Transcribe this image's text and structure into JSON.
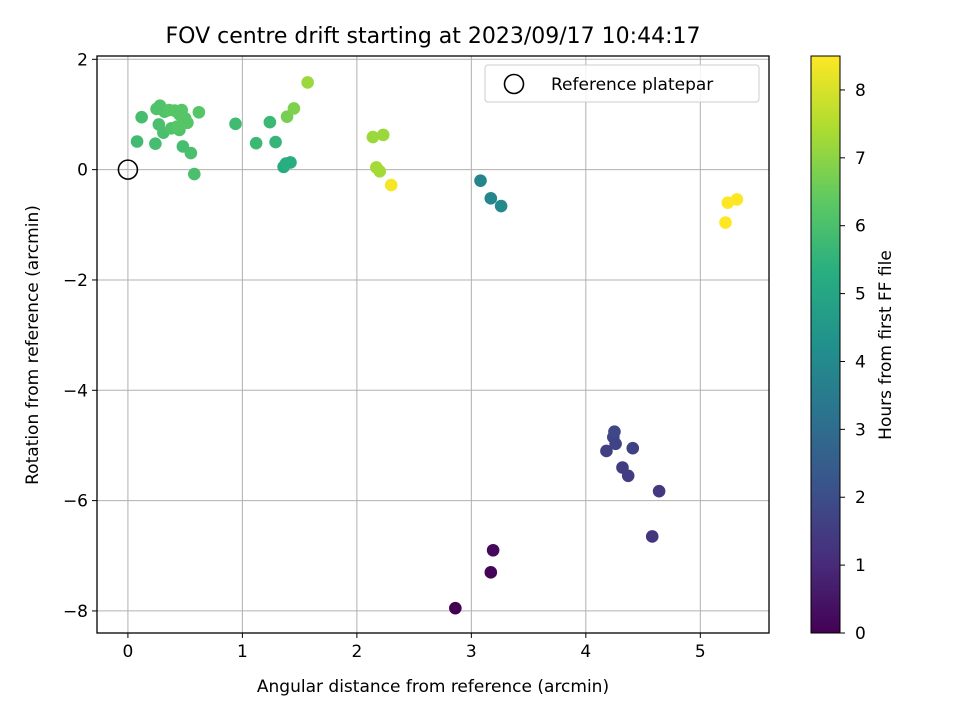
{
  "chart_data": {
    "type": "scatter",
    "title": "FOV centre drift starting at 2023/09/17 10:44:17",
    "xlabel": "Angular distance from reference (arcmin)",
    "ylabel": "Rotation from reference (arcmin)",
    "xlim": [
      -0.27,
      5.6
    ],
    "ylim": [
      -8.4,
      2.06
    ],
    "xticks": [
      0,
      1,
      2,
      3,
      4,
      5
    ],
    "xtick_labels": [
      "0",
      "1",
      "2",
      "3",
      "4",
      "5"
    ],
    "yticks": [
      2,
      0,
      -2,
      -4,
      -6,
      -8
    ],
    "ytick_labels": [
      "2",
      "0",
      "−2",
      "−4",
      "−6",
      "−8"
    ],
    "grid": true,
    "colormap": "viridis",
    "colorbar": {
      "label": "Hours from first FF file",
      "range": [
        0,
        8.5
      ],
      "ticks": [
        0,
        1,
        2,
        3,
        4,
        5,
        6,
        7,
        8
      ],
      "tick_labels": [
        "0",
        "1",
        "2",
        "3",
        "4",
        "5",
        "6",
        "7",
        "8"
      ]
    },
    "legend": {
      "label": "Reference platepar",
      "position": "top-right"
    },
    "reference_point": {
      "x": 0,
      "y": 0
    },
    "points": [
      {
        "x": 2.86,
        "y": -7.95,
        "hours": 0.0
      },
      {
        "x": 3.17,
        "y": -7.3,
        "hours": 0.1
      },
      {
        "x": 3.19,
        "y": -6.9,
        "hours": 0.2
      },
      {
        "x": 4.58,
        "y": -6.65,
        "hours": 1.3
      },
      {
        "x": 4.64,
        "y": -5.83,
        "hours": 1.4
      },
      {
        "x": 4.37,
        "y": -5.55,
        "hours": 1.5
      },
      {
        "x": 4.32,
        "y": -5.4,
        "hours": 1.5
      },
      {
        "x": 4.18,
        "y": -5.1,
        "hours": 1.6
      },
      {
        "x": 4.41,
        "y": -5.05,
        "hours": 1.6
      },
      {
        "x": 4.26,
        "y": -4.97,
        "hours": 1.7
      },
      {
        "x": 4.24,
        "y": -4.85,
        "hours": 1.7
      },
      {
        "x": 4.25,
        "y": -4.75,
        "hours": 1.8
      },
      {
        "x": 3.08,
        "y": -0.2,
        "hours": 3.8
      },
      {
        "x": 3.17,
        "y": -0.52,
        "hours": 3.9
      },
      {
        "x": 3.26,
        "y": -0.66,
        "hours": 4.0
      },
      {
        "x": 1.36,
        "y": 0.05,
        "hours": 5.2
      },
      {
        "x": 1.38,
        "y": 0.11,
        "hours": 5.3
      },
      {
        "x": 1.42,
        "y": 0.13,
        "hours": 5.3
      },
      {
        "x": 1.29,
        "y": 0.5,
        "hours": 5.6
      },
      {
        "x": 1.12,
        "y": 0.48,
        "hours": 5.7
      },
      {
        "x": 1.24,
        "y": 0.86,
        "hours": 5.7
      },
      {
        "x": 0.94,
        "y": 0.83,
        "hours": 5.8
      },
      {
        "x": 0.08,
        "y": 0.51,
        "hours": 5.8
      },
      {
        "x": 0.24,
        "y": 0.47,
        "hours": 5.9
      },
      {
        "x": 0.12,
        "y": 0.95,
        "hours": 5.9
      },
      {
        "x": 0.48,
        "y": 0.42,
        "hours": 5.9
      },
      {
        "x": 0.55,
        "y": 0.3,
        "hours": 6.0
      },
      {
        "x": 0.58,
        "y": -0.08,
        "hours": 6.0
      },
      {
        "x": 0.27,
        "y": 0.82,
        "hours": 6.0
      },
      {
        "x": 0.31,
        "y": 0.67,
        "hours": 6.0
      },
      {
        "x": 0.38,
        "y": 0.75,
        "hours": 6.1
      },
      {
        "x": 0.45,
        "y": 0.72,
        "hours": 6.1
      },
      {
        "x": 0.25,
        "y": 1.1,
        "hours": 6.1
      },
      {
        "x": 0.28,
        "y": 1.16,
        "hours": 6.1
      },
      {
        "x": 0.32,
        "y": 1.05,
        "hours": 6.1
      },
      {
        "x": 0.36,
        "y": 1.08,
        "hours": 6.2
      },
      {
        "x": 0.41,
        "y": 1.07,
        "hours": 6.2
      },
      {
        "x": 0.45,
        "y": 1.0,
        "hours": 6.2
      },
      {
        "x": 0.47,
        "y": 1.08,
        "hours": 6.2
      },
      {
        "x": 0.5,
        "y": 0.93,
        "hours": 6.2
      },
      {
        "x": 0.52,
        "y": 0.85,
        "hours": 6.2
      },
      {
        "x": 0.62,
        "y": 1.04,
        "hours": 6.2
      },
      {
        "x": 0.43,
        "y": 0.78,
        "hours": 6.2
      },
      {
        "x": 1.39,
        "y": 0.96,
        "hours": 6.7
      },
      {
        "x": 1.45,
        "y": 1.11,
        "hours": 6.8
      },
      {
        "x": 1.57,
        "y": 1.58,
        "hours": 7.2
      },
      {
        "x": 2.14,
        "y": 0.59,
        "hours": 7.2
      },
      {
        "x": 2.23,
        "y": 0.63,
        "hours": 7.2
      },
      {
        "x": 2.17,
        "y": 0.04,
        "hours": 7.3
      },
      {
        "x": 2.2,
        "y": -0.03,
        "hours": 7.3
      },
      {
        "x": 2.3,
        "y": -0.28,
        "hours": 8.4
      },
      {
        "x": 5.22,
        "y": -0.96,
        "hours": 8.5
      },
      {
        "x": 5.24,
        "y": -0.6,
        "hours": 8.5
      },
      {
        "x": 5.32,
        "y": -0.54,
        "hours": 8.5
      }
    ]
  }
}
